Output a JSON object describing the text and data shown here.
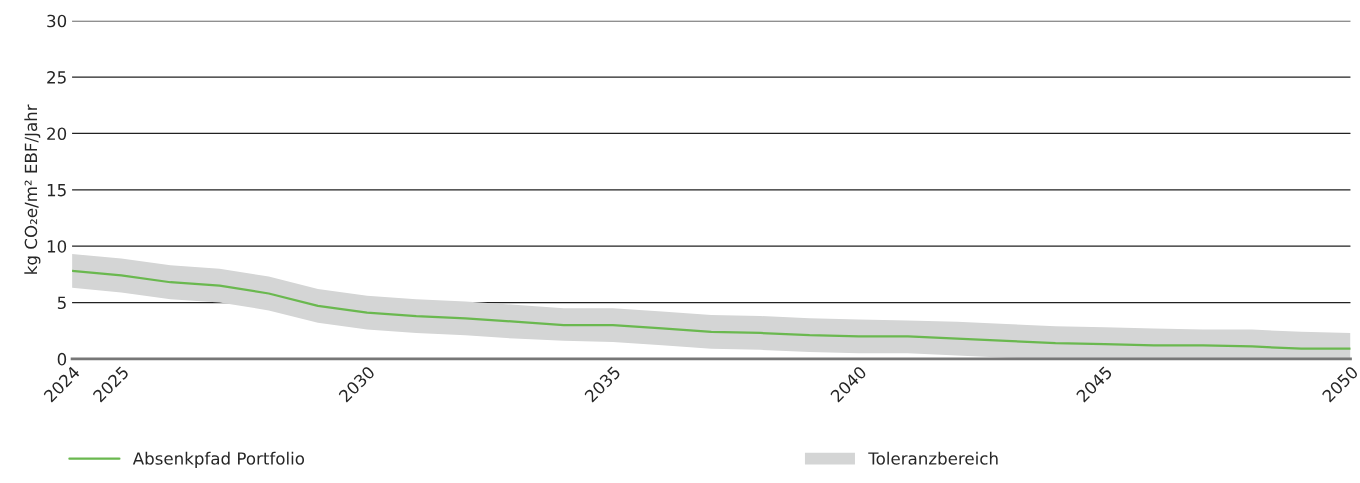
{
  "chart_data": {
    "type": "line",
    "ylabel": "kg CO₂e/m² EBF/Jahr",
    "x": [
      2024,
      2025,
      2026,
      2027,
      2028,
      2029,
      2030,
      2031,
      2032,
      2033,
      2034,
      2035,
      2036,
      2037,
      2038,
      2039,
      2040,
      2041,
      2042,
      2043,
      2044,
      2045,
      2046,
      2047,
      2048,
      2049,
      2050
    ],
    "series": [
      {
        "name": "Absenkpfad Portfolio",
        "color": "#6ab84f",
        "values": [
          7.8,
          7.4,
          6.8,
          6.5,
          5.8,
          4.7,
          4.1,
          3.8,
          3.6,
          3.3,
          3.0,
          3.0,
          2.7,
          2.4,
          2.3,
          2.1,
          2.0,
          2.0,
          1.8,
          1.6,
          1.4,
          1.3,
          1.2,
          1.2,
          1.1,
          0.9,
          0.9
        ],
        "lower": [
          6.3,
          5.9,
          5.3,
          5.0,
          4.3,
          3.2,
          2.6,
          2.3,
          2.1,
          1.8,
          1.6,
          1.5,
          1.2,
          0.9,
          0.8,
          0.6,
          0.5,
          0.5,
          0.3,
          0.1,
          0.0,
          0.0,
          0.0,
          0.0,
          0.0,
          0.0,
          0.0
        ],
        "upper": [
          9.3,
          8.9,
          8.3,
          8.0,
          7.3,
          6.2,
          5.6,
          5.3,
          5.1,
          4.8,
          4.5,
          4.5,
          4.2,
          3.9,
          3.8,
          3.6,
          3.5,
          3.4,
          3.3,
          3.1,
          2.9,
          2.8,
          2.7,
          2.6,
          2.6,
          2.4,
          2.3
        ]
      }
    ],
    "annotations": [
      "Toleranzbereich"
    ],
    "xlim": [
      2024,
      2050
    ],
    "xticks": [
      2024,
      2025,
      2030,
      2035,
      2040,
      2045,
      2050
    ],
    "ylim": [
      0,
      30
    ],
    "yticks": [
      0,
      5,
      10,
      15,
      20,
      25,
      30
    ],
    "grid": "y",
    "legend": "bottom"
  }
}
